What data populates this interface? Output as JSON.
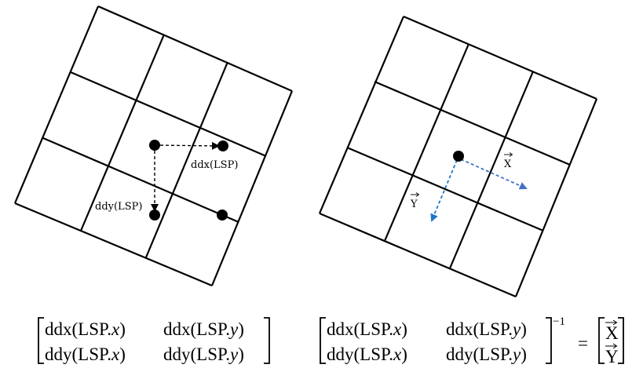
{
  "left_diagram": {
    "label_ddx": "ddx(LSP)",
    "label_ddy": "ddy(LSP)"
  },
  "right_diagram": {
    "label_x": "X",
    "label_y": "Y",
    "arrow_color": "#4472C4",
    "arrow_color_y": "#1F77C9"
  },
  "left_matrix": {
    "r1c1": "ddx(LSP.",
    "r1c1_var": "x",
    "r1c2": "ddx(LSP.",
    "r1c2_var": "y",
    "r2c1": "ddy(LSP.",
    "r2c1_var": "x",
    "r2c2": "ddy(LSP.",
    "r2c2_var": "y",
    "close": ")"
  },
  "right_equation": {
    "r1c1": "ddx(LSP.",
    "r1c1_var": "x",
    "r1c2": "ddx(LSP.",
    "r1c2_var": "y",
    "r2c1": "ddy(LSP.",
    "r2c1_var": "x",
    "r2c2": "ddy(LSP.",
    "r2c2_var": "y",
    "close": ")",
    "exponent": "−1",
    "equals": "=",
    "result_x": "X",
    "result_y": "Y"
  }
}
